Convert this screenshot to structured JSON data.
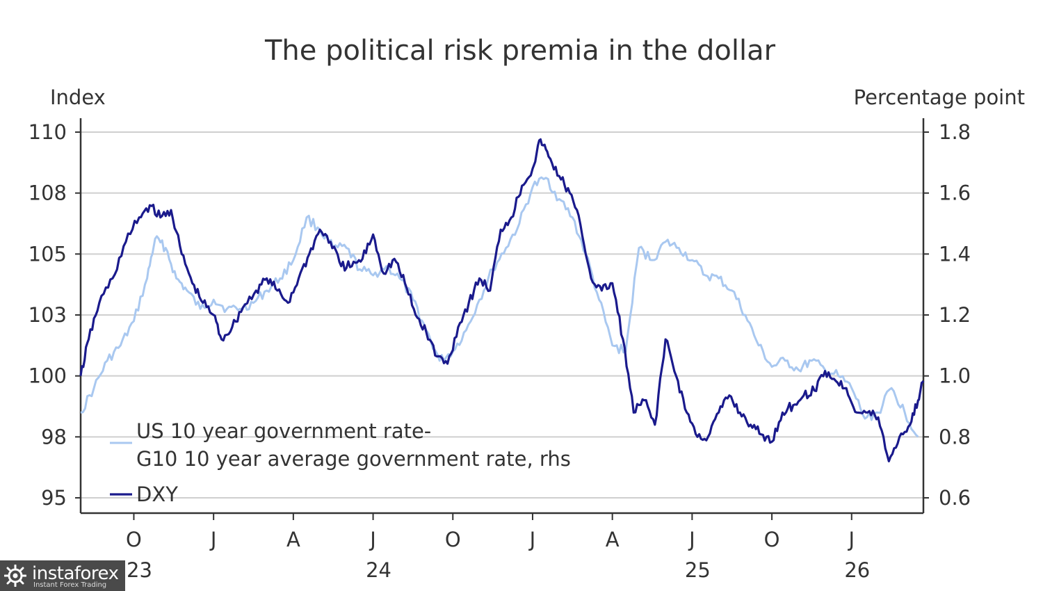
{
  "chart_data": {
    "type": "line",
    "title": "The political risk premia in the dollar",
    "left_axis": {
      "unit_label": "Index",
      "ticks": [
        {
          "label": "110",
          "value": 110
        },
        {
          "label": "108",
          "value": 107.5
        },
        {
          "label": "105",
          "value": 105
        },
        {
          "label": "103",
          "value": 102.5
        },
        {
          "label": "100",
          "value": 100
        },
        {
          "label": "98",
          "value": 97.5
        },
        {
          "label": "95",
          "value": 95
        }
      ],
      "range": [
        95,
        110
      ]
    },
    "right_axis": {
      "unit_label": "Percentage point",
      "ticks": [
        "1.8",
        "1.6",
        "1.4",
        "1.2",
        "1.0",
        "0.8",
        "0.6"
      ],
      "range": [
        0.6,
        1.8
      ]
    },
    "x_axis": {
      "range": [
        "2023-08",
        "2026-03"
      ],
      "month_ticks": [
        {
          "label": "O",
          "t": 2
        },
        {
          "label": "J",
          "t": 5
        },
        {
          "label": "A",
          "t": 8
        },
        {
          "label": "J",
          "t": 11
        },
        {
          "label": "O",
          "t": 14
        },
        {
          "label": "J",
          "t": 17
        },
        {
          "label": "A",
          "t": 20
        },
        {
          "label": "J",
          "t": 23
        },
        {
          "label": "O",
          "t": 26
        },
        {
          "label": "J",
          "t": 29
        }
      ],
      "year_labels": [
        {
          "label": "23",
          "t": 2
        },
        {
          "label": "24",
          "t": 11
        },
        {
          "label": "25",
          "t": 23
        },
        {
          "label": "26",
          "t": 29
        }
      ],
      "t_max": 31.7
    },
    "legend": [
      {
        "line1": "US 10 year government rate-",
        "line2": "G10 10 year average government rate, rhs",
        "color": "#a9c8f0"
      },
      {
        "line1": "DXY",
        "color": "#1a1a8c"
      }
    ],
    "series": [
      {
        "name": "US 10 year government rate- G10 10 year average government rate, rhs",
        "axis": "right",
        "color": "#a9c8f0",
        "points": [
          [
            0,
            0.88
          ],
          [
            0.5,
            0.96
          ],
          [
            1.0,
            1.05
          ],
          [
            1.5,
            1.1
          ],
          [
            2.0,
            1.18
          ],
          [
            2.5,
            1.32
          ],
          [
            2.8,
            1.45
          ],
          [
            3.2,
            1.42
          ],
          [
            3.6,
            1.32
          ],
          [
            4.0,
            1.28
          ],
          [
            4.5,
            1.22
          ],
          [
            5.0,
            1.25
          ],
          [
            5.5,
            1.22
          ],
          [
            6.0,
            1.22
          ],
          [
            6.5,
            1.24
          ],
          [
            7.0,
            1.28
          ],
          [
            7.5,
            1.32
          ],
          [
            8.0,
            1.38
          ],
          [
            8.5,
            1.52
          ],
          [
            9.0,
            1.48
          ],
          [
            9.5,
            1.42
          ],
          [
            10.0,
            1.42
          ],
          [
            10.5,
            1.35
          ],
          [
            11.0,
            1.33
          ],
          [
            11.5,
            1.36
          ],
          [
            12.0,
            1.32
          ],
          [
            12.5,
            1.25
          ],
          [
            13.0,
            1.15
          ],
          [
            13.5,
            1.05
          ],
          [
            14.0,
            1.08
          ],
          [
            14.5,
            1.15
          ],
          [
            15.0,
            1.25
          ],
          [
            15.5,
            1.35
          ],
          [
            16.0,
            1.42
          ],
          [
            16.5,
            1.5
          ],
          [
            17.0,
            1.62
          ],
          [
            17.5,
            1.65
          ],
          [
            18.0,
            1.58
          ],
          [
            18.5,
            1.52
          ],
          [
            19.0,
            1.4
          ],
          [
            19.5,
            1.25
          ],
          [
            20.0,
            1.1
          ],
          [
            20.5,
            1.08
          ],
          [
            21.0,
            1.42
          ],
          [
            21.5,
            1.38
          ],
          [
            22.0,
            1.44
          ],
          [
            22.5,
            1.42
          ],
          [
            23.0,
            1.38
          ],
          [
            23.5,
            1.33
          ],
          [
            24.0,
            1.32
          ],
          [
            24.5,
            1.28
          ],
          [
            25.0,
            1.2
          ],
          [
            25.5,
            1.1
          ],
          [
            26.0,
            1.03
          ],
          [
            26.5,
            1.05
          ],
          [
            27.0,
            1.02
          ],
          [
            27.5,
            1.05
          ],
          [
            28.0,
            1.02
          ],
          [
            28.5,
            1.0
          ],
          [
            29.0,
            0.96
          ],
          [
            29.5,
            0.86
          ],
          [
            30.0,
            0.88
          ],
          [
            30.5,
            0.96
          ],
          [
            31.0,
            0.88
          ],
          [
            31.5,
            0.8
          ]
        ]
      },
      {
        "name": "DXY",
        "axis": "left",
        "color": "#1a1a8c",
        "points": [
          [
            0,
            100.0
          ],
          [
            0.3,
            101.5
          ],
          [
            0.7,
            103.0
          ],
          [
            1.2,
            104.0
          ],
          [
            1.7,
            105.5
          ],
          [
            2.2,
            106.5
          ],
          [
            2.6,
            107.0
          ],
          [
            3.0,
            106.5
          ],
          [
            3.4,
            106.8
          ],
          [
            3.8,
            105.0
          ],
          [
            4.2,
            103.8
          ],
          [
            4.6,
            103.0
          ],
          [
            5.0,
            102.5
          ],
          [
            5.3,
            101.5
          ],
          [
            5.7,
            102.0
          ],
          [
            6.1,
            102.8
          ],
          [
            6.6,
            103.5
          ],
          [
            7.0,
            104.0
          ],
          [
            7.4,
            103.5
          ],
          [
            7.8,
            103.0
          ],
          [
            8.2,
            104.0
          ],
          [
            8.6,
            105.0
          ],
          [
            9.0,
            106.0
          ],
          [
            9.4,
            105.5
          ],
          [
            9.8,
            104.5
          ],
          [
            10.2,
            104.5
          ],
          [
            10.6,
            104.8
          ],
          [
            11.0,
            105.8
          ],
          [
            11.4,
            104.2
          ],
          [
            11.8,
            104.8
          ],
          [
            12.2,
            103.8
          ],
          [
            12.6,
            102.5
          ],
          [
            13.0,
            101.8
          ],
          [
            13.4,
            100.8
          ],
          [
            13.8,
            100.5
          ],
          [
            14.2,
            102.0
          ],
          [
            14.6,
            103.0
          ],
          [
            15.0,
            104.0
          ],
          [
            15.4,
            103.5
          ],
          [
            15.8,
            106.0
          ],
          [
            16.2,
            106.5
          ],
          [
            16.6,
            107.8
          ],
          [
            17.0,
            108.5
          ],
          [
            17.3,
            109.7
          ],
          [
            17.6,
            109.0
          ],
          [
            18.0,
            108.2
          ],
          [
            18.4,
            107.5
          ],
          [
            18.8,
            106.2
          ],
          [
            19.2,
            104.0
          ],
          [
            19.6,
            103.5
          ],
          [
            20.0,
            103.8
          ],
          [
            20.4,
            101.5
          ],
          [
            20.8,
            98.5
          ],
          [
            21.2,
            99.0
          ],
          [
            21.6,
            98.0
          ],
          [
            22.0,
            101.5
          ],
          [
            22.4,
            100.0
          ],
          [
            22.8,
            98.5
          ],
          [
            23.2,
            97.5
          ],
          [
            23.6,
            97.5
          ],
          [
            24.0,
            98.5
          ],
          [
            24.4,
            99.2
          ],
          [
            24.8,
            98.5
          ],
          [
            25.2,
            98.0
          ],
          [
            25.6,
            97.6
          ],
          [
            26.0,
            97.3
          ],
          [
            26.4,
            98.5
          ],
          [
            26.8,
            98.8
          ],
          [
            27.2,
            99.2
          ],
          [
            27.6,
            99.4
          ],
          [
            28.0,
            100.2
          ],
          [
            28.4,
            99.8
          ],
          [
            28.8,
            99.5
          ],
          [
            29.2,
            98.5
          ],
          [
            29.6,
            98.5
          ],
          [
            30.0,
            98.3
          ],
          [
            30.4,
            96.5
          ],
          [
            30.8,
            97.5
          ],
          [
            31.2,
            98.0
          ],
          [
            31.5,
            99.0
          ],
          [
            31.7,
            99.8
          ]
        ]
      }
    ]
  },
  "watermark": {
    "brand": "instaforex",
    "tagline": "Instant Forex Trading"
  }
}
